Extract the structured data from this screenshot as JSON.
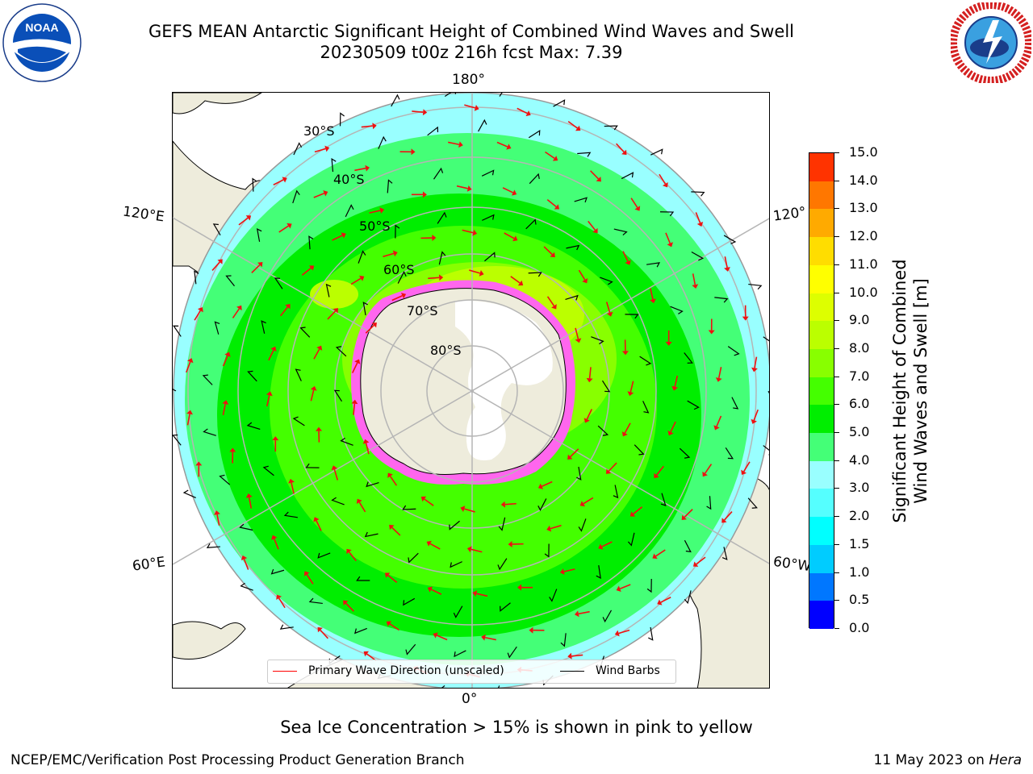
{
  "title": {
    "line1": "GEFS MEAN Antarctic Significant Height of Combined Wind Waves and Swell",
    "line2": "20230509 t00z 216h fcst   Max: 7.39"
  },
  "logos": {
    "left": {
      "name": "noaa-logo",
      "text": "NOAA"
    },
    "right": {
      "name": "nws-logo",
      "text": "NATIONAL WEATHER SERVICE"
    }
  },
  "map": {
    "longitude_labels": {
      "top": "180°",
      "upper_left": "120°E",
      "upper_right": "120°",
      "lower_left": "60°E",
      "lower_right": "60°W",
      "bottom": "0°"
    },
    "latitude_labels": [
      "30°S",
      "40°S",
      "50°S",
      "60°S",
      "70°S",
      "80°S"
    ],
    "colors": {
      "land": "#eeecdc",
      "ice_cap": "#ffffff",
      "sea_ice": "#ff33ee",
      "grid": "#b5b5b5",
      "wave_arrow": "#ee1111",
      "wind_barb": "#000000"
    }
  },
  "legend": {
    "wave_direction": {
      "label": "Primary Wave Direction (unscaled)",
      "color": "#ff0000"
    },
    "wind_barbs": {
      "label": "Wind Barbs",
      "color": "#000000"
    }
  },
  "colorbar": {
    "label_line1": "Significant Height of Combined",
    "label_line2": "Wind Waves and Swell [m]",
    "ticks": [
      "0.0",
      "0.5",
      "1.0",
      "1.5",
      "2.0",
      "3.0",
      "4.0",
      "5.0",
      "6.0",
      "7.0",
      "8.0",
      "9.0",
      "10.0",
      "11.0",
      "12.0",
      "13.0",
      "14.0",
      "15.0"
    ],
    "colors": [
      "#0000ff",
      "#0077ff",
      "#00ccff",
      "#00ffff",
      "#55ffff",
      "#99ffff",
      "#44ff77",
      "#00ee00",
      "#44ff00",
      "#88ff00",
      "#bbff00",
      "#ddff00",
      "#ffff00",
      "#ffdd00",
      "#ffaa00",
      "#ff7700",
      "#ff3300"
    ]
  },
  "note": "Sea Ice Concentration > 15% is shown in pink to yellow",
  "footer": {
    "left": "NCEP/EMC/Verification Post Processing Product Generation Branch",
    "right_prefix": "11 May 2023 on ",
    "right_host": "Hera"
  }
}
